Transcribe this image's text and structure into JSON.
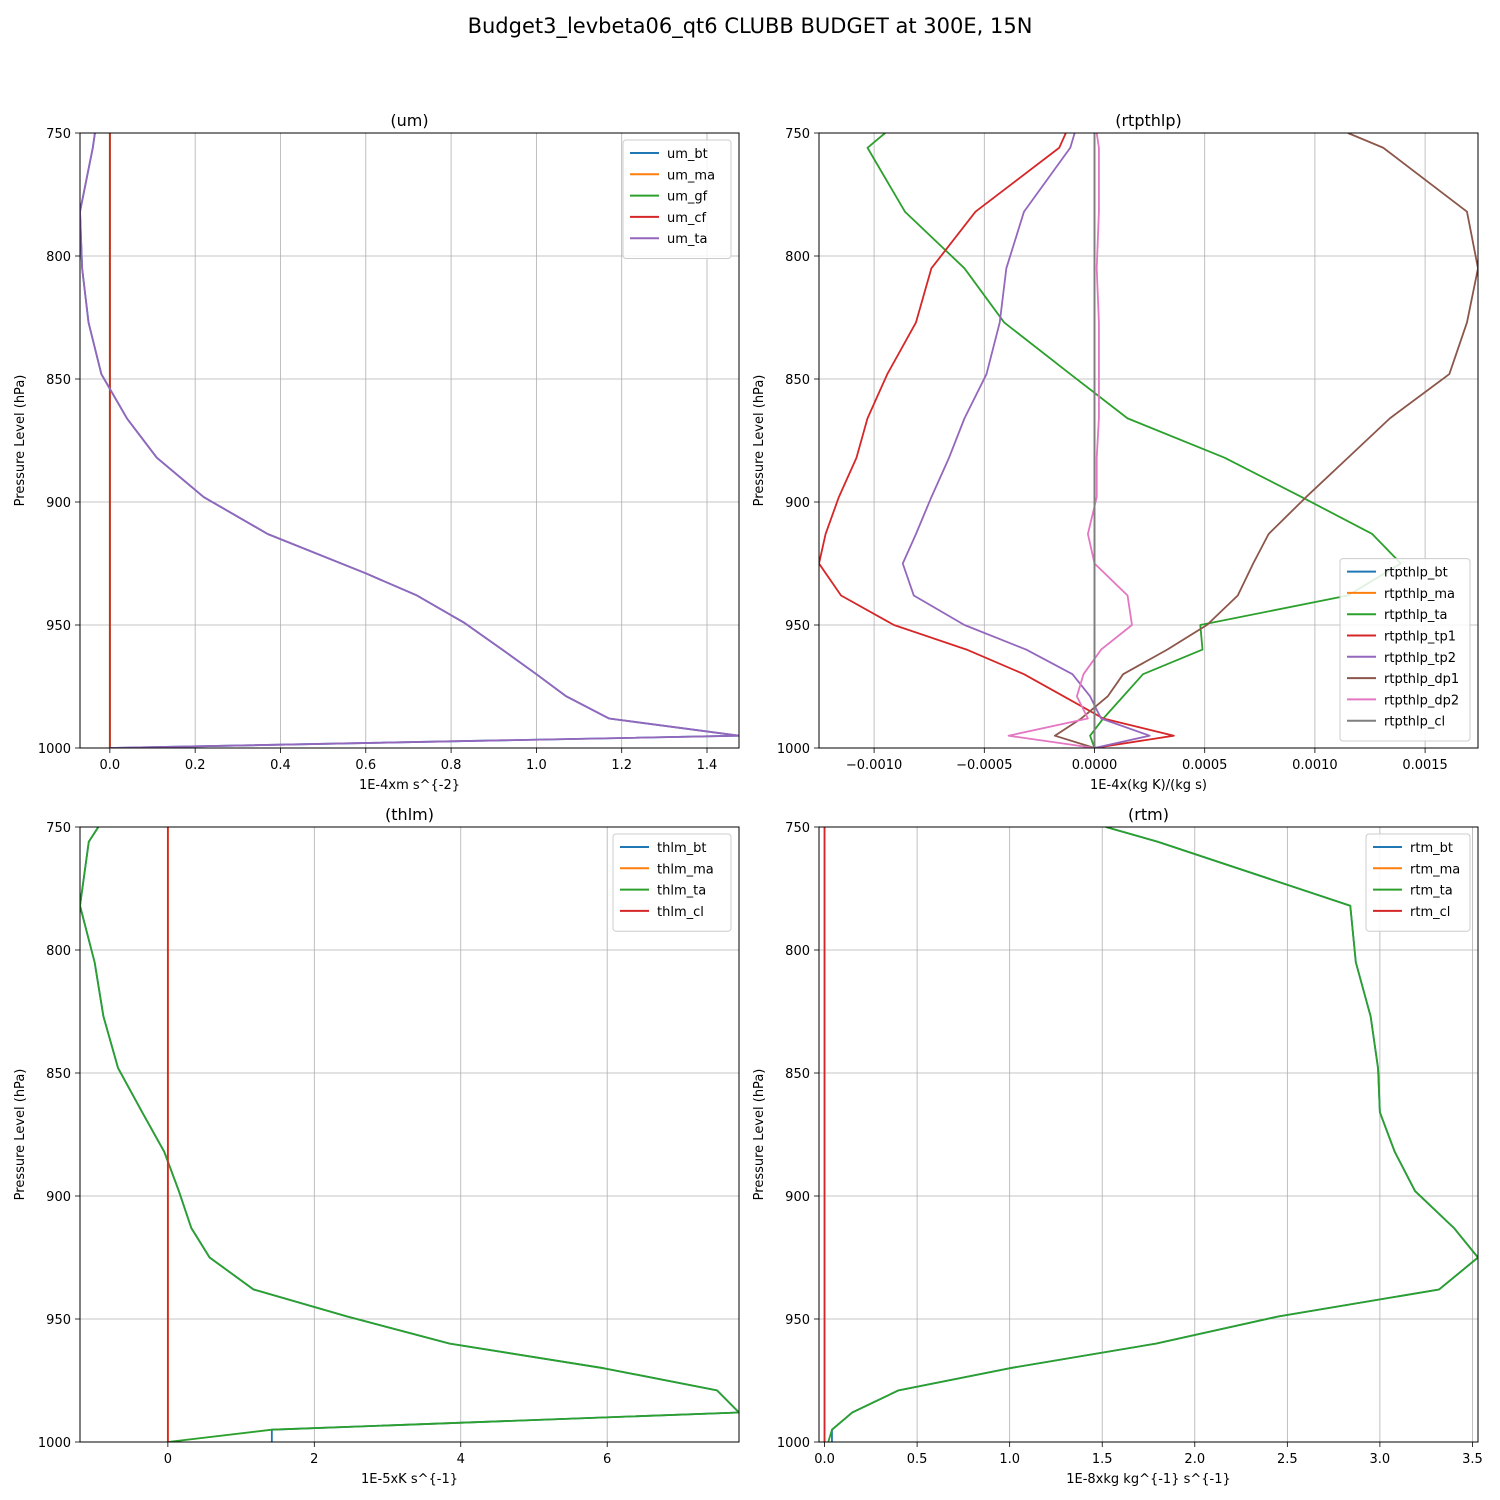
{
  "figure": {
    "suptitle": "Budget3_levbeta06_qt6 CLUBB BUDGET at 300E, 15N"
  },
  "chart_data": [
    {
      "type": "line",
      "title": "(um)",
      "xlabel": "1E-4xm s^{-2}",
      "ylabel": "Pressure Level (hPa)",
      "xlim": [
        -0.07,
        1.475
      ],
      "ylim": [
        1000,
        750
      ],
      "y_inverted": true,
      "grid": true,
      "legend": "top-right",
      "xticks": [
        "0.0",
        "0.2",
        "0.4",
        "0.6",
        "0.8",
        "1.0",
        "1.2",
        "1.4"
      ],
      "xtick_values": [
        0.0,
        0.2,
        0.4,
        0.6,
        0.8,
        1.0,
        1.2,
        1.4
      ],
      "yticks": [
        "750",
        "800",
        "850",
        "900",
        "950",
        "1000"
      ],
      "ytick_values": [
        750,
        800,
        850,
        900,
        950,
        1000
      ],
      "y": [
        750,
        756,
        782,
        805,
        827,
        848,
        866,
        882,
        898,
        913,
        929,
        938,
        949,
        960,
        970,
        979,
        988,
        995,
        1000
      ],
      "series": [
        {
          "name": "um_bt",
          "color": "#1f77b4",
          "values": [
            -0.035,
            -0.04,
            -0.07,
            -0.065,
            -0.05,
            -0.02,
            0.04,
            0.11,
            0.22,
            0.37,
            0.6,
            0.72,
            0.83,
            0.92,
            1.0,
            1.07,
            1.17,
            1.475,
            0.0
          ]
        },
        {
          "name": "um_ma",
          "color": "#ff7f0e",
          "values": [
            0,
            0,
            0,
            0,
            0,
            0,
            0,
            0,
            0,
            0,
            0,
            0,
            0,
            0,
            0,
            0,
            0,
            0,
            0
          ]
        },
        {
          "name": "um_gf",
          "color": "#2ca02c",
          "values": [
            0,
            0,
            0,
            0,
            0,
            0,
            0,
            0,
            0,
            0,
            0,
            0,
            0,
            0,
            0,
            0,
            0,
            0,
            0
          ]
        },
        {
          "name": "um_cf",
          "color": "#d62728",
          "values": [
            0,
            0,
            0,
            0,
            0,
            0,
            0,
            0,
            0,
            0,
            0,
            0,
            0,
            0,
            0,
            0,
            0,
            0,
            0
          ]
        },
        {
          "name": "um_ta",
          "color": "#9467bd",
          "values": [
            -0.035,
            -0.04,
            -0.07,
            -0.065,
            -0.05,
            -0.02,
            0.04,
            0.11,
            0.22,
            0.37,
            0.6,
            0.72,
            0.83,
            0.92,
            1.0,
            1.07,
            1.17,
            1.475,
            0.0
          ]
        }
      ]
    },
    {
      "type": "line",
      "title": "(rtpthlp)",
      "xlabel": "1E-4x(kg K)/(kg s)",
      "ylabel": "Pressure Level (hPa)",
      "xlim": [
        -0.00125,
        0.00174
      ],
      "ylim": [
        1000,
        750
      ],
      "y_inverted": true,
      "grid": true,
      "legend": "lower-right",
      "xticks": [
        "−0.0010",
        "−0.0005",
        "0.0000",
        "0.0005",
        "0.0010",
        "0.0015"
      ],
      "xtick_values": [
        -0.001,
        -0.0005,
        0.0,
        0.0005,
        0.001,
        0.0015
      ],
      "yticks": [
        "750",
        "800",
        "850",
        "900",
        "950",
        "1000"
      ],
      "ytick_values": [
        750,
        800,
        850,
        900,
        950,
        1000
      ],
      "y": [
        750,
        756,
        782,
        805,
        827,
        848,
        866,
        882,
        898,
        913,
        925,
        938,
        950,
        960,
        970,
        979,
        988,
        995,
        1000
      ],
      "series": [
        {
          "name": "rtpthlp_bt",
          "color": "#1f77b4",
          "values": [
            0,
            0,
            0,
            0,
            0,
            0,
            0,
            0,
            0,
            0,
            0,
            0,
            0,
            0,
            0,
            0,
            0,
            0,
            0
          ]
        },
        {
          "name": "rtpthlp_ma",
          "color": "#ff7f0e",
          "values": [
            0,
            0,
            0,
            0,
            0,
            0,
            0,
            0,
            0,
            0,
            0,
            0,
            0,
            0,
            0,
            0,
            0,
            0,
            0
          ]
        },
        {
          "name": "rtpthlp_ta",
          "color": "#2ca02c",
          "values": [
            -0.00095,
            -0.00103,
            -0.00086,
            -0.00059,
            -0.00041,
            -0.00011,
            0.00015,
            0.00059,
            0.00094,
            0.00126,
            0.00139,
            0.00115,
            0.00048,
            0.00049,
            0.00022,
            0.00013,
            4e-05,
            -2e-05,
            0.0
          ]
        },
        {
          "name": "rtpthlp_tp1",
          "color": "#d62728",
          "values": [
            -0.00013,
            -0.00016,
            -0.00054,
            -0.00074,
            -0.00081,
            -0.00094,
            -0.00103,
            -0.00108,
            -0.00116,
            -0.00122,
            -0.00125,
            -0.00115,
            -0.00091,
            -0.00058,
            -0.00032,
            -0.00014,
            4e-05,
            0.00036,
            0.0
          ]
        },
        {
          "name": "rtpthlp_tp2",
          "color": "#9467bd",
          "values": [
            -9e-05,
            -0.00011,
            -0.00032,
            -0.0004,
            -0.00043,
            -0.00049,
            -0.00059,
            -0.00066,
            -0.00074,
            -0.00081,
            -0.00087,
            -0.00082,
            -0.00059,
            -0.00031,
            -0.0001,
            -2e-05,
            3e-05,
            0.00025,
            0.0
          ]
        },
        {
          "name": "rtpthlp_dp1",
          "color": "#8c564b",
          "values": [
            0.00115,
            0.00131,
            0.00169,
            0.00174,
            0.00169,
            0.00161,
            0.00134,
            0.00115,
            0.00096,
            0.00079,
            0.00072,
            0.00065,
            0.00051,
            0.00033,
            0.00013,
            6e-05,
            -6e-05,
            -0.00018,
            0.0
          ]
        },
        {
          "name": "rtpthlp_dp2",
          "color": "#e377c2",
          "values": [
            1e-05,
            2e-05,
            2e-05,
            1e-05,
            2e-05,
            2e-05,
            2e-05,
            1e-05,
            1e-05,
            -3e-05,
            0.0,
            0.00015,
            0.00017,
            3e-05,
            -5e-05,
            -8e-05,
            -3e-05,
            -0.00039,
            0.0
          ]
        },
        {
          "name": "rtpthlp_cl",
          "color": "#7f7f7f",
          "values": [
            0,
            0,
            0,
            0,
            0,
            0,
            0,
            0,
            0,
            0,
            0,
            0,
            0,
            0,
            0,
            0,
            0,
            0,
            0
          ]
        }
      ]
    },
    {
      "type": "line",
      "title": "(thlm)",
      "xlabel": "1E-5xK s^{-1}",
      "ylabel": "Pressure Level (hPa)",
      "xlim": [
        -1.2,
        7.8
      ],
      "ylim": [
        1000,
        750
      ],
      "y_inverted": true,
      "grid": true,
      "legend": "top-right",
      "xticks": [
        "0",
        "2",
        "4",
        "6"
      ],
      "xtick_values": [
        0,
        2,
        4,
        6
      ],
      "yticks": [
        "750",
        "800",
        "850",
        "900",
        "950",
        "1000"
      ],
      "ytick_values": [
        750,
        800,
        850,
        900,
        950,
        1000
      ],
      "y": [
        750,
        756,
        782,
        805,
        827,
        848,
        866,
        882,
        898,
        913,
        925,
        938,
        949,
        960,
        970,
        979,
        988,
        995,
        1000
      ],
      "series": [
        {
          "name": "thlm_bt",
          "color": "#1f77b4",
          "values": [
            -0.95,
            -1.08,
            -1.2,
            -1.0,
            -0.88,
            -0.68,
            -0.35,
            -0.05,
            0.15,
            0.32,
            0.57,
            1.17,
            2.45,
            3.85,
            5.95,
            7.5,
            7.8,
            1.42,
            1.42
          ]
        },
        {
          "name": "thlm_ma",
          "color": "#ff7f0e",
          "values": [
            0,
            0,
            0,
            0,
            0,
            0,
            0,
            0,
            0,
            0,
            0,
            0,
            0,
            0,
            0,
            0,
            0,
            0,
            0
          ]
        },
        {
          "name": "thlm_ta",
          "color": "#2ca02c",
          "values": [
            -0.95,
            -1.08,
            -1.2,
            -1.0,
            -0.88,
            -0.68,
            -0.35,
            -0.05,
            0.15,
            0.32,
            0.57,
            1.17,
            2.45,
            3.85,
            5.95,
            7.5,
            7.8,
            1.42,
            0.0
          ]
        },
        {
          "name": "thlm_cl",
          "color": "#d62728",
          "values": [
            0,
            0,
            0,
            0,
            0,
            0,
            0,
            0,
            0,
            0,
            0,
            0,
            0,
            0,
            0,
            0,
            0,
            0,
            0
          ]
        }
      ]
    },
    {
      "type": "line",
      "title": "(rtm)",
      "xlabel": "1E-8xkg kg^{-1} s^{-1}",
      "ylabel": "Pressure Level (hPa)",
      "xlim": [
        -0.03,
        3.53
      ],
      "ylim": [
        1000,
        750
      ],
      "y_inverted": true,
      "grid": true,
      "legend": "top-right",
      "xticks": [
        "0.0",
        "0.5",
        "1.0",
        "1.5",
        "2.0",
        "2.5",
        "3.0",
        "3.5"
      ],
      "xtick_values": [
        0.0,
        0.5,
        1.0,
        1.5,
        2.0,
        2.5,
        3.0,
        3.5
      ],
      "yticks": [
        "750",
        "800",
        "850",
        "900",
        "950",
        "1000"
      ],
      "ytick_values": [
        750,
        800,
        850,
        900,
        950,
        1000
      ],
      "y": [
        750,
        756,
        782,
        805,
        827,
        848,
        866,
        882,
        898,
        913,
        925,
        938,
        949,
        960,
        970,
        979,
        988,
        995,
        1000
      ],
      "series": [
        {
          "name": "rtm_bt",
          "color": "#1f77b4",
          "values": [
            1.52,
            1.8,
            2.84,
            2.87,
            2.95,
            2.99,
            3.0,
            3.08,
            3.19,
            3.4,
            3.53,
            3.32,
            2.45,
            1.79,
            1.0,
            0.4,
            0.15,
            0.04,
            0.04
          ]
        },
        {
          "name": "rtm_ma",
          "color": "#ff7f0e",
          "values": [
            0,
            0,
            0,
            0,
            0,
            0,
            0,
            0,
            0,
            0,
            0,
            0,
            0,
            0,
            0,
            0,
            0,
            0,
            0
          ]
        },
        {
          "name": "rtm_ta",
          "color": "#2ca02c",
          "values": [
            1.52,
            1.8,
            2.84,
            2.87,
            2.95,
            2.99,
            3.0,
            3.08,
            3.19,
            3.4,
            3.53,
            3.32,
            2.45,
            1.79,
            1.0,
            0.4,
            0.15,
            0.04,
            0.02
          ]
        },
        {
          "name": "rtm_cl",
          "color": "#d62728",
          "values": [
            0,
            0,
            0,
            0,
            0,
            0,
            0,
            0,
            0,
            0,
            0,
            0,
            0,
            0,
            0,
            0,
            0,
            0,
            0
          ]
        }
      ]
    }
  ]
}
